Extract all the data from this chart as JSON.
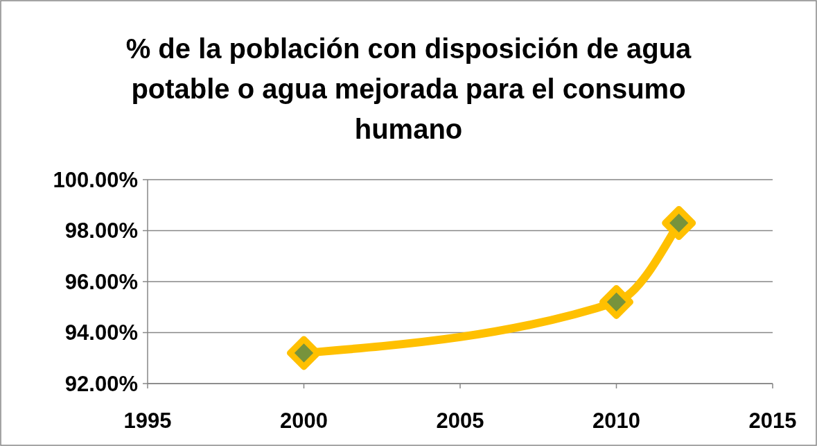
{
  "chart_data": {
    "type": "line",
    "title": "% de la población con disposición de agua potable o agua mejorada para el consumo humano",
    "x": [
      2000,
      2010,
      2012
    ],
    "series": [
      {
        "color": "#ffc000",
        "values": [
          93.2,
          95.2,
          98.3
        ]
      }
    ],
    "xlim": [
      1995,
      2015
    ],
    "xticks": [
      1995,
      2000,
      2005,
      2010,
      2015
    ],
    "ylim": [
      92,
      100
    ],
    "yticks": [
      {
        "value": 92,
        "label": "92.00%"
      },
      {
        "value": 94,
        "label": "94.00%"
      },
      {
        "value": 96,
        "label": "96.00%"
      },
      {
        "value": 98,
        "label": "98.00%"
      },
      {
        "value": 100,
        "label": "100.00%"
      }
    ],
    "grid": "y",
    "marker": "diamond",
    "line_style": "solid"
  }
}
